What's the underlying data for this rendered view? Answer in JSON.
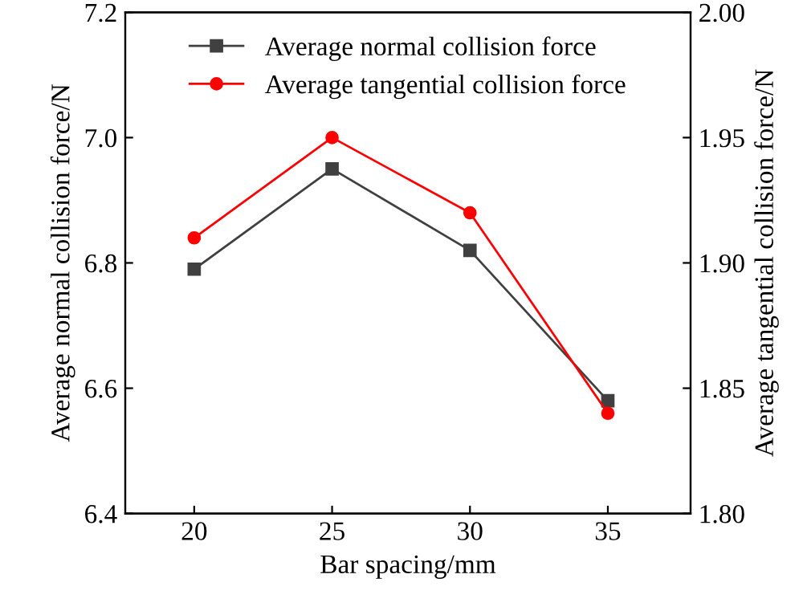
{
  "chart_data": {
    "type": "line",
    "xlabel": "Bar spacing/mm",
    "ylabel": "Average normal collision force/N",
    "y2label": "Average tangential collision force/N",
    "x": [
      20,
      25,
      30,
      35
    ],
    "series": [
      {
        "name": "Average normal collision force",
        "color": "#404040",
        "marker": "square",
        "values": [
          6.79,
          6.95,
          6.82,
          6.58
        ]
      },
      {
        "name": "Average tangential collision force",
        "color": "#ff0000",
        "marker": "circle",
        "axis": "y2",
        "values": [
          1.91,
          1.95,
          1.92,
          1.84
        ]
      }
    ],
    "xlim": [
      17.5,
      38
    ],
    "xticks": [
      20,
      25,
      30,
      35
    ],
    "ylim": [
      6.4,
      7.2
    ],
    "yticks": [
      {
        "value": 6.4,
        "label": "6.4"
      },
      {
        "value": 6.6,
        "label": "6.6"
      },
      {
        "value": 6.8,
        "label": "6.8"
      },
      {
        "value": 7.0,
        "label": "7.0"
      },
      {
        "value": 7.2,
        "label": "7.2"
      }
    ],
    "y2lim": [
      1.8,
      2.0
    ],
    "y2ticks": [
      {
        "value": 1.8,
        "label": "1.80"
      },
      {
        "value": 1.85,
        "label": "1.85"
      },
      {
        "value": 1.9,
        "label": "1.90"
      },
      {
        "value": 1.95,
        "label": "1.95"
      },
      {
        "value": 2.0,
        "label": "2.00"
      }
    ],
    "legend": "top",
    "grid": false,
    "line_style": "solid"
  }
}
